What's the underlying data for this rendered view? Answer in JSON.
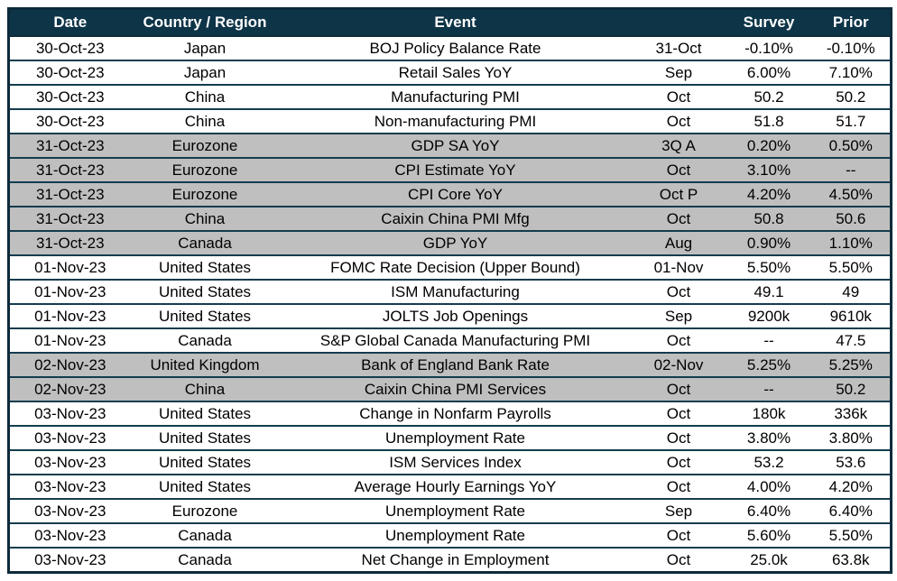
{
  "colors": {
    "header_bg": "#0d3447",
    "header_text": "#ffffff",
    "row_bg": "#ffffff",
    "row_shaded_bg": "#bfbfbf",
    "border": "#143c4f",
    "outer_border": "#0d2b3a",
    "text": "#000000"
  },
  "table": {
    "columns": [
      {
        "key": "date",
        "label": "Date"
      },
      {
        "key": "country",
        "label": "Country / Region"
      },
      {
        "key": "event",
        "label": "Event"
      },
      {
        "key": "period",
        "label": ""
      },
      {
        "key": "survey",
        "label": "Survey"
      },
      {
        "key": "prior",
        "label": "Prior"
      }
    ],
    "rows": [
      {
        "date": "30-Oct-23",
        "country": "Japan",
        "event": "BOJ Policy Balance Rate",
        "period": "31-Oct",
        "survey": "-0.10%",
        "prior": "-0.10%",
        "shaded": false
      },
      {
        "date": "30-Oct-23",
        "country": "Japan",
        "event": "Retail Sales YoY",
        "period": "Sep",
        "survey": "6.00%",
        "prior": "7.10%",
        "shaded": false
      },
      {
        "date": "30-Oct-23",
        "country": "China",
        "event": "Manufacturing PMI",
        "period": "Oct",
        "survey": "50.2",
        "prior": "50.2",
        "shaded": false
      },
      {
        "date": "30-Oct-23",
        "country": "China",
        "event": "Non-manufacturing PMI",
        "period": "Oct",
        "survey": "51.8",
        "prior": "51.7",
        "shaded": false
      },
      {
        "date": "31-Oct-23",
        "country": "Eurozone",
        "event": "GDP SA YoY",
        "period": "3Q A",
        "survey": "0.20%",
        "prior": "0.50%",
        "shaded": true
      },
      {
        "date": "31-Oct-23",
        "country": "Eurozone",
        "event": "CPI Estimate YoY",
        "period": "Oct",
        "survey": "3.10%",
        "prior": "--",
        "shaded": true
      },
      {
        "date": "31-Oct-23",
        "country": "Eurozone",
        "event": "CPI Core YoY",
        "period": "Oct P",
        "survey": "4.20%",
        "prior": "4.50%",
        "shaded": true
      },
      {
        "date": "31-Oct-23",
        "country": "China",
        "event": "Caixin China PMI Mfg",
        "period": "Oct",
        "survey": "50.8",
        "prior": "50.6",
        "shaded": true
      },
      {
        "date": "31-Oct-23",
        "country": "Canada",
        "event": "GDP YoY",
        "period": "Aug",
        "survey": "0.90%",
        "prior": "1.10%",
        "shaded": true
      },
      {
        "date": "01-Nov-23",
        "country": "United States",
        "event": "FOMC Rate Decision (Upper Bound)",
        "period": "01-Nov",
        "survey": "5.50%",
        "prior": "5.50%",
        "shaded": false
      },
      {
        "date": "01-Nov-23",
        "country": "United States",
        "event": "ISM Manufacturing",
        "period": "Oct",
        "survey": "49.1",
        "prior": "49",
        "shaded": false
      },
      {
        "date": "01-Nov-23",
        "country": "United States",
        "event": "JOLTS Job Openings",
        "period": "Sep",
        "survey": "9200k",
        "prior": "9610k",
        "shaded": false
      },
      {
        "date": "01-Nov-23",
        "country": "Canada",
        "event": "S&P Global Canada Manufacturing PMI",
        "period": "Oct",
        "survey": "--",
        "prior": "47.5",
        "shaded": false
      },
      {
        "date": "02-Nov-23",
        "country": "United Kingdom",
        "event": "Bank of England Bank Rate",
        "period": "02-Nov",
        "survey": "5.25%",
        "prior": "5.25%",
        "shaded": true
      },
      {
        "date": "02-Nov-23",
        "country": "China",
        "event": "Caixin China PMI Services",
        "period": "Oct",
        "survey": "--",
        "prior": "50.2",
        "shaded": true
      },
      {
        "date": "03-Nov-23",
        "country": "United States",
        "event": "Change in Nonfarm Payrolls",
        "period": "Oct",
        "survey": "180k",
        "prior": "336k",
        "shaded": false
      },
      {
        "date": "03-Nov-23",
        "country": "United States",
        "event": "Unemployment Rate",
        "period": "Oct",
        "survey": "3.80%",
        "prior": "3.80%",
        "shaded": false
      },
      {
        "date": "03-Nov-23",
        "country": "United States",
        "event": "ISM Services Index",
        "period": "Oct",
        "survey": "53.2",
        "prior": "53.6",
        "shaded": false
      },
      {
        "date": "03-Nov-23",
        "country": "United States",
        "event": "Average Hourly Earnings YoY",
        "period": "Oct",
        "survey": "4.00%",
        "prior": "4.20%",
        "shaded": false
      },
      {
        "date": "03-Nov-23",
        "country": "Eurozone",
        "event": "Unemployment Rate",
        "period": "Sep",
        "survey": "6.40%",
        "prior": "6.40%",
        "shaded": false
      },
      {
        "date": "03-Nov-23",
        "country": "Canada",
        "event": "Unemployment Rate",
        "period": "Oct",
        "survey": "5.60%",
        "prior": "5.50%",
        "shaded": false
      },
      {
        "date": "03-Nov-23",
        "country": "Canada",
        "event": "Net Change in Employment",
        "period": "Oct",
        "survey": "25.0k",
        "prior": "63.8k",
        "shaded": false
      }
    ]
  }
}
